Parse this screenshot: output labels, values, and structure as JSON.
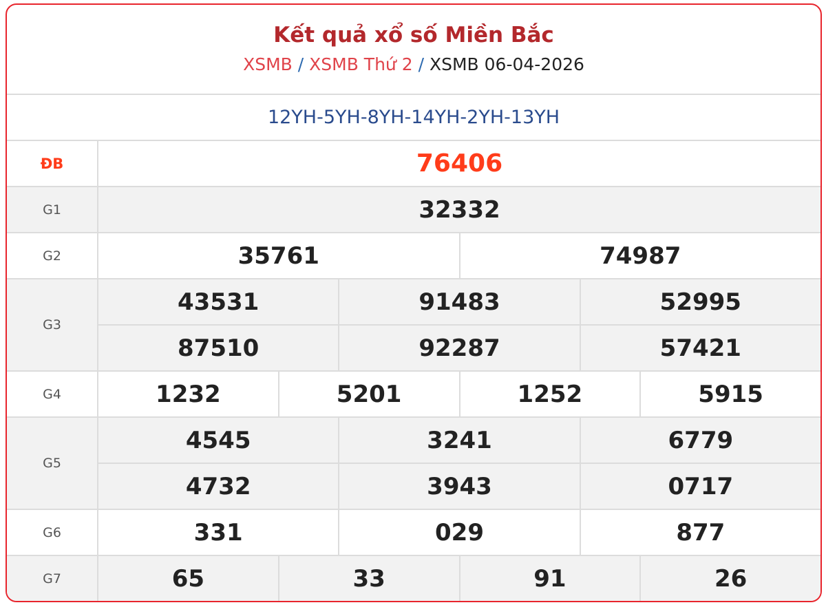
{
  "header": {
    "title": "Kết quả xổ số Miền Bắc",
    "breadcrumb": [
      "XSMB",
      "XSMB Thứ 2",
      "XSMB 06-04-2026"
    ],
    "separator": "/"
  },
  "codes": "12YH-5YH-8YH-14YH-2YH-13YH",
  "colors": {
    "border": "#e8242c",
    "title": "#b3282c",
    "special": "#ff3c1a",
    "code": "#2a4b8d"
  },
  "prizes": {
    "db": {
      "label": "ĐB",
      "numbers": [
        "76406"
      ]
    },
    "g1": {
      "label": "G1",
      "numbers": [
        "32332"
      ]
    },
    "g2": {
      "label": "G2",
      "numbers": [
        "35761",
        "74987"
      ]
    },
    "g3": {
      "label": "G3",
      "numbers": [
        "43531",
        "91483",
        "52995",
        "87510",
        "92287",
        "57421"
      ]
    },
    "g4": {
      "label": "G4",
      "numbers": [
        "1232",
        "5201",
        "1252",
        "5915"
      ]
    },
    "g5": {
      "label": "G5",
      "numbers": [
        "4545",
        "3241",
        "6779",
        "4732",
        "3943",
        "0717"
      ]
    },
    "g6": {
      "label": "G6",
      "numbers": [
        "331",
        "029",
        "877"
      ]
    },
    "g7": {
      "label": "G7",
      "numbers": [
        "65",
        "33",
        "91",
        "26"
      ]
    }
  }
}
